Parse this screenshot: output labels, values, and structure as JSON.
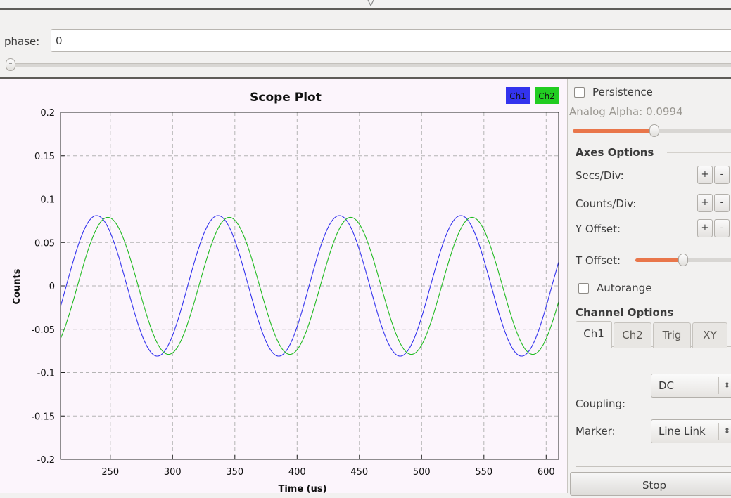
{
  "phase": {
    "label": "phase:",
    "value": "0",
    "slider_level": 0.0
  },
  "plot": {
    "title": "Scope Plot",
    "legend": [
      "Ch1",
      "Ch2"
    ]
  },
  "chart_data": {
    "type": "line",
    "title": "Scope Plot",
    "xlabel": "Time (us)",
    "ylabel": "Counts",
    "xlim": [
      210,
      610
    ],
    "ylim": [
      -0.2,
      0.2
    ],
    "xticks": [
      250,
      300,
      350,
      400,
      450,
      500,
      550,
      600
    ],
    "yticks": [
      0.2,
      0.15,
      0.1,
      0.05,
      0,
      -0.05,
      -0.1,
      -0.15,
      -0.2
    ],
    "ytick_labels": [
      "0.2",
      "0.15",
      "0.1",
      "0.05",
      "0",
      "-0.05",
      "-0.1",
      "-0.15",
      "-0.2"
    ],
    "grid": true,
    "legend_position": "top-right",
    "series": [
      {
        "name": "Ch1",
        "color": "#3333ee",
        "amplitude": 0.081,
        "period_us": 97.5,
        "peak_us": 239
      },
      {
        "name": "Ch2",
        "color": "#22bb22",
        "amplitude": 0.079,
        "period_us": 97.5,
        "peak_us": 248
      }
    ]
  },
  "panel": {
    "persistence_label": "Persistence",
    "persistence_checked": false,
    "alpha_label": "Analog Alpha: 0.0994",
    "alpha_level": 0.0994,
    "axes_header": "Axes Options",
    "secs_div_label": "Secs/Div:",
    "counts_div_label": "Counts/Div:",
    "y_offset_label": "Y Offset:",
    "t_offset_label": "T Offset:",
    "plus": "+",
    "minus": "-",
    "autorange_label": "Autorange",
    "autorange_checked": false,
    "channel_header": "Channel Options",
    "tabs": [
      "Ch1",
      "Ch2",
      "Trig",
      "XY"
    ],
    "active_tab": "Ch1",
    "coupling_label": "Coupling:",
    "coupling_value": "DC",
    "marker_label": "Marker:",
    "marker_value": "Line Link",
    "stop_label": "Stop"
  },
  "colors": {
    "accent": "#e9764a",
    "plot_bg": "#fcf5fc",
    "ch1": "#3333ee",
    "ch2": "#22bb22"
  }
}
